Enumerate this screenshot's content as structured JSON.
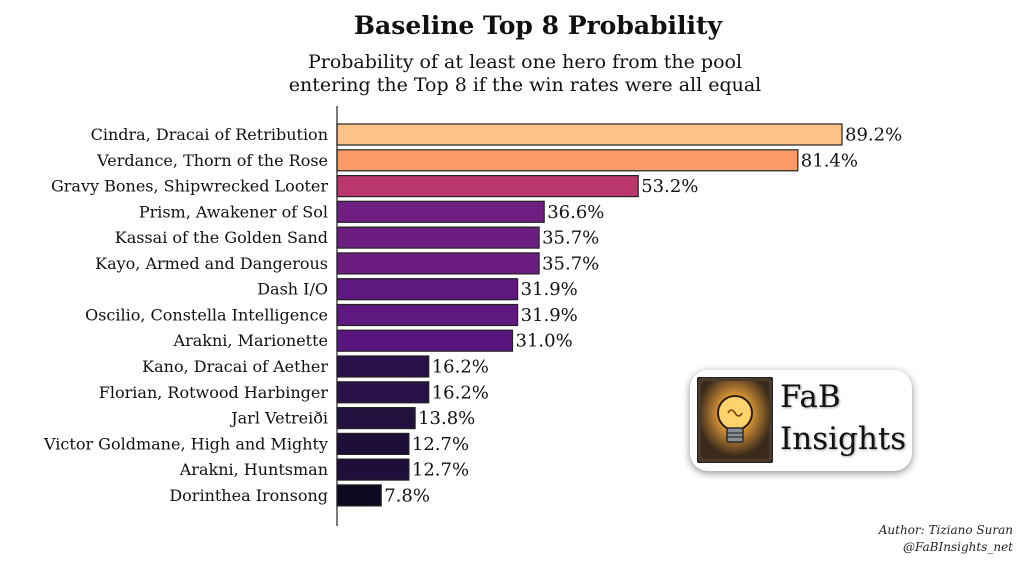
{
  "chart_data": {
    "type": "bar",
    "orientation": "horizontal",
    "title": "Baseline Top 8 Probability",
    "subtitle_lines": [
      "Probability of at least one hero from the pool",
      "entering the Top 8 if the win rates were all equal"
    ],
    "xlabel": "",
    "ylabel": "",
    "xlim": [
      0,
      92
    ],
    "value_suffix": "%",
    "categories": [
      "Cindra, Dracai of Retribution",
      "Verdance, Thorn of the Rose",
      "Gravy Bones, Shipwrecked Looter",
      "Prism, Awakener of Sol",
      "Kassai of the Golden Sand",
      "Kayo, Armed and Dangerous",
      "Dash I/O",
      "Oscilio, Constella Intelligence",
      "Arakni, Marionette",
      "Kano, Dracai of Aether",
      "Florian, Rotwood Harbinger",
      "Jarl Vetreiði",
      "Victor Goldmane, High and Mighty",
      "Arakni, Huntsman",
      "Dorinthea Ironsong"
    ],
    "values": [
      89.2,
      81.4,
      53.2,
      36.6,
      35.7,
      35.7,
      31.9,
      31.9,
      31.0,
      16.2,
      16.2,
      13.8,
      12.7,
      12.7,
      7.8
    ],
    "value_labels": [
      "89.2%",
      "81.4%",
      "53.2%",
      "36.6%",
      "35.7%",
      "35.7%",
      "31.9%",
      "31.9%",
      "31.0%",
      "16.2%",
      "16.2%",
      "13.8%",
      "12.7%",
      "12.7%",
      "7.8%"
    ],
    "colors": [
      "#fec287",
      "#fb9b6a",
      "#b9376b",
      "#6f1f81",
      "#6c1d80",
      "#6c1d80",
      "#5f187f",
      "#5f187f",
      "#5a167e",
      "#2a1147",
      "#2a1147",
      "#22103f",
      "#1e0e3a",
      "#1e0e3a",
      "#0e0820"
    ]
  },
  "logo": {
    "line1": "FaB",
    "line2": "Insights",
    "icon": "lightbulb-icon"
  },
  "credits": {
    "author": "Author: Tiziano Suran",
    "handle": "@FaBInsights_net"
  }
}
